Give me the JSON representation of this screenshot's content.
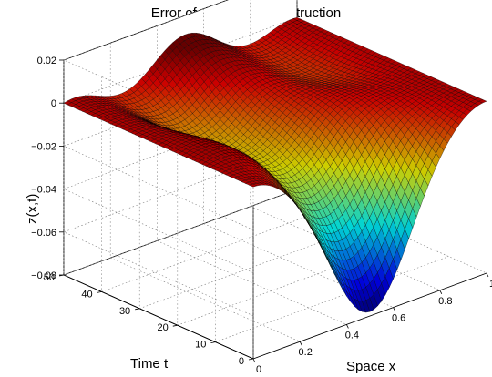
{
  "chart_data": {
    "type": "surface",
    "title": "Error of dynamic reconstruction",
    "xlabel": "Space x",
    "ylabel": "Time t",
    "zlabel": "z(x,t)",
    "x_ticks": [
      "0",
      "0.2",
      "0.4",
      "0.6",
      "0.8",
      "1"
    ],
    "y_ticks": [
      "0",
      "10",
      "20",
      "30",
      "40",
      "50"
    ],
    "z_ticks": [
      "0.02",
      "0",
      "−0.02",
      "−0.04",
      "−0.06",
      "−0.08"
    ],
    "xlim": [
      0,
      1
    ],
    "ylim": [
      0,
      50
    ],
    "zlim": [
      -0.08,
      0.02
    ],
    "z_min": -0.078,
    "z_at_boundaries": 0,
    "colormap": "jet",
    "grid": true,
    "box": true
  }
}
